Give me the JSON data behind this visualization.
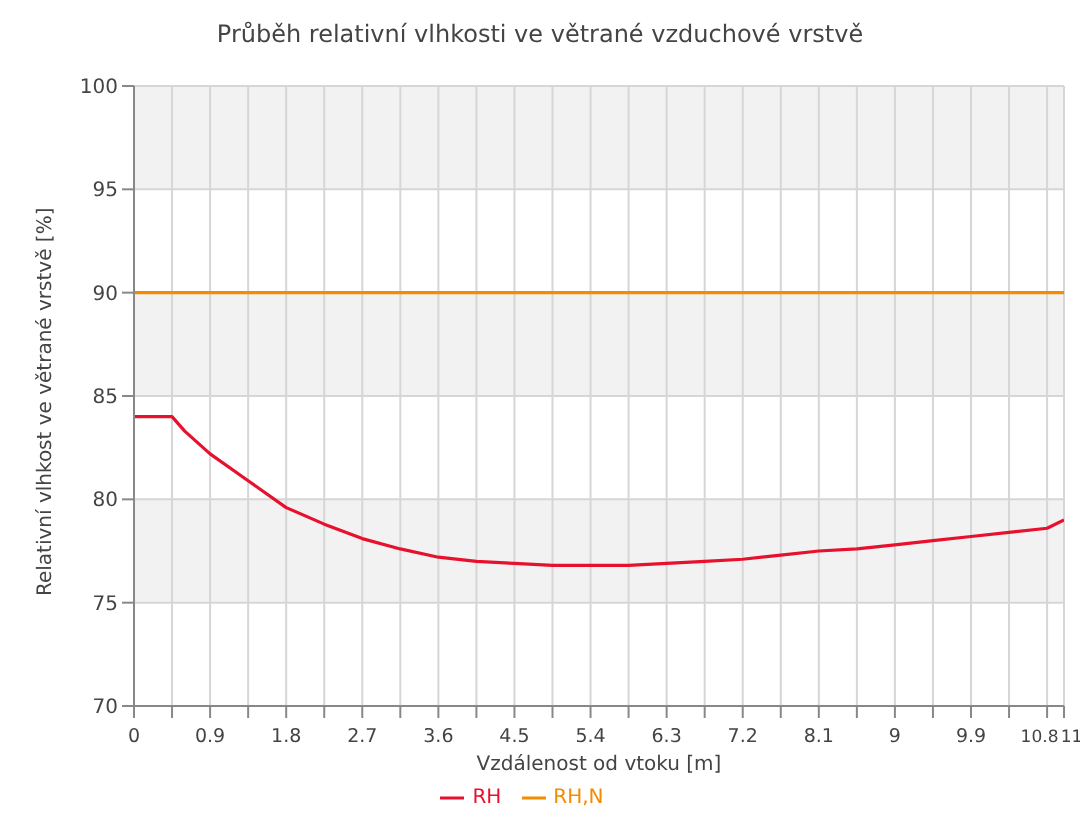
{
  "chart_data": {
    "type": "line",
    "title": "Průběh relativní vlhkosti ve větrané vzduchové vrstvě",
    "xlabel": "Vzdálenost od vtoku [m]",
    "ylabel": "Relativní vlhkost ve větrané vrstvě [%]",
    "series": [
      {
        "name": "RH",
        "color": "#e8112d",
        "x": [
          0,
          0.45,
          0.6,
          0.9,
          1.35,
          1.8,
          2.25,
          2.7,
          3.15,
          3.6,
          4.05,
          4.5,
          4.95,
          5.4,
          5.85,
          6.3,
          6.75,
          7.2,
          7.65,
          8.1,
          8.55,
          9,
          9.45,
          9.9,
          10.35,
          10.8,
          11
        ],
        "values": [
          84,
          84,
          83.3,
          82.2,
          80.9,
          79.6,
          78.8,
          78.1,
          77.6,
          77.2,
          77.0,
          76.9,
          76.8,
          76.8,
          76.8,
          76.9,
          77.0,
          77.1,
          77.3,
          77.5,
          77.6,
          77.8,
          78.0,
          78.2,
          78.4,
          78.6,
          79.0
        ]
      },
      {
        "name": "RH,N",
        "color": "#f28c00",
        "x": [
          0,
          11
        ],
        "values": [
          90,
          90
        ]
      }
    ],
    "xlim": [
      0,
      11
    ],
    "ylim": [
      70,
      100
    ],
    "xticks": [
      0,
      {
        "value": 0.45,
        "label": null
      },
      0.9,
      {
        "value": 1.35,
        "label": null
      },
      1.8,
      {
        "value": 2.25,
        "label": null
      },
      2.7,
      {
        "value": 3.15,
        "label": null
      },
      3.6,
      {
        "value": 4.05,
        "label": null
      },
      4.5,
      {
        "value": 4.95,
        "label": null
      },
      5.4,
      {
        "value": 5.85,
        "label": null
      },
      6.3,
      {
        "value": 6.75,
        "label": null
      },
      7.2,
      {
        "value": 7.65,
        "label": null
      },
      8.1,
      {
        "value": 8.55,
        "label": null
      },
      9,
      {
        "value": 9.45,
        "label": null
      },
      9.9,
      {
        "value": 10.35,
        "label": null
      },
      10.8,
      11
    ],
    "yticks": [
      70,
      75,
      80,
      85,
      90,
      95,
      100
    ],
    "grid": true,
    "legend": "bottom",
    "marker": "none",
    "line_style": "solid"
  }
}
